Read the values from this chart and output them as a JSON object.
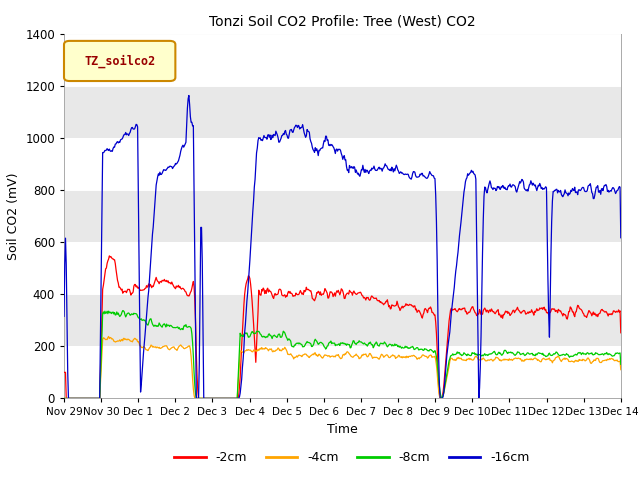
{
  "title": "Tonzi Soil CO2 Profile: Tree (West) CO2",
  "ylabel": "Soil CO2 (mV)",
  "xlabel": "Time",
  "legend_label": "TZ_soilco2",
  "series_labels": [
    "-2cm",
    "-4cm",
    "-8cm",
    "-16cm"
  ],
  "series_colors": [
    "#ff0000",
    "#ffa500",
    "#00cc00",
    "#0000cc"
  ],
  "ylim": [
    0,
    1400
  ],
  "figsize": [
    6.4,
    4.8
  ],
  "dpi": 100,
  "background_color": "#ffffff",
  "plot_bg_color": "#ffffff",
  "legend_box_color": "#ffffcc",
  "legend_box_edge": "#cc8800",
  "legend_text_color": "#990000",
  "grid_color": "#e0e0e0",
  "band_color": "#e8e8e8"
}
